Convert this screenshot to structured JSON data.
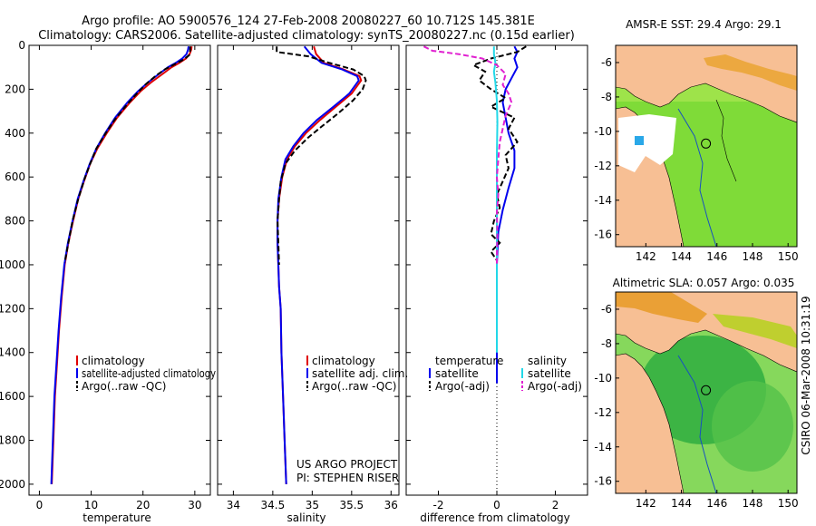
{
  "header": {
    "line1": "Argo profile: AO 5900576_124 27-Feb-2008 20080227_60 10.712S 145.381E",
    "line2": "Climatology: CARS2006. Satellite-adjusted climatology: synTS_20080227.nc (0.15d earlier)"
  },
  "side_label": "CSIRO 06-Mar-2008 10:31:19",
  "colors": {
    "clim": "#e00000",
    "sat": "#0000ee",
    "argo": "#000000",
    "sal_sat": "#22d8e8",
    "sal_argo": "#e020d0",
    "land": "#f7bf94"
  },
  "chart_data": [
    {
      "type": "line",
      "title": "",
      "xlabel": "temperature",
      "ylabel": "",
      "xlim": [
        -2,
        33
      ],
      "ylim": [
        2050,
        0
      ],
      "xticks": [
        0,
        10,
        20,
        30
      ],
      "yticks": [
        0,
        200,
        400,
        600,
        800,
        1000,
        1200,
        1400,
        1600,
        1800,
        2000
      ],
      "legend": [
        "climatology",
        "satellite-adjusted climatology",
        "Argo(..raw -QC)"
      ],
      "series": [
        {
          "name": "climatology",
          "color": "#e00000",
          "dash": "",
          "points": [
            [
              29.4,
              5
            ],
            [
              29.3,
              20
            ],
            [
              29.0,
              40
            ],
            [
              28.3,
              60
            ],
            [
              27.0,
              80
            ],
            [
              25.5,
              100
            ],
            [
              23.8,
              130
            ],
            [
              21.5,
              170
            ],
            [
              19.5,
              210
            ],
            [
              17.5,
              260
            ],
            [
              15.0,
              330
            ],
            [
              13.0,
              400
            ],
            [
              11.2,
              470
            ],
            [
              9.8,
              540
            ],
            [
              8.6,
              620
            ],
            [
              7.5,
              700
            ],
            [
              6.5,
              800
            ],
            [
              5.6,
              900
            ],
            [
              4.9,
              1000
            ],
            [
              4.3,
              1150
            ],
            [
              3.8,
              1300
            ],
            [
              3.4,
              1450
            ],
            [
              3.0,
              1600
            ],
            [
              2.7,
              1800
            ],
            [
              2.4,
              2000
            ]
          ]
        },
        {
          "name": "satellite-adjusted climatology",
          "color": "#0000ee",
          "dash": "",
          "points": [
            [
              28.8,
              5
            ],
            [
              28.7,
              20
            ],
            [
              28.4,
              40
            ],
            [
              27.6,
              60
            ],
            [
              26.3,
              80
            ],
            [
              24.8,
              100
            ],
            [
              23.1,
              130
            ],
            [
              20.9,
              170
            ],
            [
              19.0,
              210
            ],
            [
              17.0,
              260
            ],
            [
              14.6,
              330
            ],
            [
              12.7,
              400
            ],
            [
              11.0,
              470
            ],
            [
              9.7,
              540
            ],
            [
              8.5,
              620
            ],
            [
              7.4,
              700
            ],
            [
              6.4,
              800
            ],
            [
              5.5,
              900
            ],
            [
              4.8,
              1000
            ],
            [
              4.2,
              1150
            ],
            [
              3.7,
              1300
            ],
            [
              3.3,
              1450
            ],
            [
              2.9,
              1600
            ],
            [
              2.6,
              1800
            ],
            [
              2.3,
              2000
            ]
          ]
        },
        {
          "name": "Argo(..raw -QC)",
          "color": "#000000",
          "dash": "6,3",
          "points": [
            [
              29.1,
              5
            ],
            [
              29.1,
              25
            ],
            [
              28.9,
              45
            ],
            [
              27.8,
              65
            ],
            [
              26.2,
              85
            ],
            [
              24.2,
              110
            ],
            [
              22.4,
              140
            ],
            [
              20.4,
              180
            ],
            [
              18.8,
              220
            ],
            [
              16.9,
              270
            ],
            [
              14.5,
              340
            ],
            [
              12.8,
              400
            ],
            [
              11.0,
              470
            ],
            [
              9.8,
              540
            ],
            [
              8.7,
              610
            ],
            [
              7.5,
              700
            ],
            [
              6.4,
              800
            ],
            [
              5.6,
              900
            ],
            [
              4.9,
              990
            ]
          ]
        }
      ]
    },
    {
      "type": "line",
      "title": "",
      "xlabel": "salinity",
      "ylabel": "",
      "xlim": [
        33.8,
        36.1
      ],
      "ylim": [
        2050,
        0
      ],
      "xticks": [
        34,
        34.5,
        35,
        35.5,
        36
      ],
      "legend": [
        "climatology",
        "satellite adj. clim.",
        "Argo(..raw -QC)"
      ],
      "annotations": [
        "US ARGO PROJECT",
        "PI: STEPHEN RISER"
      ],
      "series": [
        {
          "name": "climatology",
          "color": "#e00000",
          "dash": "",
          "points": [
            [
              35.02,
              5
            ],
            [
              35.05,
              40
            ],
            [
              35.15,
              80
            ],
            [
              35.4,
              110
            ],
            [
              35.6,
              140
            ],
            [
              35.62,
              160
            ],
            [
              35.5,
              220
            ],
            [
              35.3,
              280
            ],
            [
              35.1,
              340
            ],
            [
              34.92,
              400
            ],
            [
              34.78,
              460
            ],
            [
              34.68,
              520
            ],
            [
              34.62,
              600
            ],
            [
              34.58,
              700
            ],
            [
              34.56,
              800
            ],
            [
              34.56,
              900
            ],
            [
              34.57,
              1000
            ],
            [
              34.58,
              1100
            ],
            [
              34.6,
              1200
            ],
            [
              34.61,
              1400
            ],
            [
              34.63,
              1600
            ],
            [
              34.65,
              1800
            ],
            [
              34.67,
              2000
            ]
          ]
        },
        {
          "name": "satellite adj. clim.",
          "color": "#0000ee",
          "dash": "",
          "points": [
            [
              34.9,
              5
            ],
            [
              34.98,
              40
            ],
            [
              35.12,
              80
            ],
            [
              35.38,
              110
            ],
            [
              35.57,
              140
            ],
            [
              35.59,
              160
            ],
            [
              35.47,
              220
            ],
            [
              35.27,
              280
            ],
            [
              35.06,
              340
            ],
            [
              34.89,
              400
            ],
            [
              34.76,
              460
            ],
            [
              34.66,
              520
            ],
            [
              34.61,
              600
            ],
            [
              34.57,
              700
            ],
            [
              34.56,
              800
            ],
            [
              34.56,
              900
            ],
            [
              34.57,
              1000
            ],
            [
              34.58,
              1100
            ],
            [
              34.6,
              1200
            ],
            [
              34.61,
              1400
            ],
            [
              34.63,
              1600
            ],
            [
              34.65,
              1800
            ],
            [
              34.67,
              2000
            ]
          ]
        },
        {
          "name": "Argo(..raw -QC)",
          "color": "#000000",
          "dash": "6,3",
          "points": [
            [
              34.55,
              5
            ],
            [
              34.55,
              30
            ],
            [
              34.95,
              50
            ],
            [
              35.22,
              80
            ],
            [
              35.52,
              110
            ],
            [
              35.66,
              140
            ],
            [
              35.68,
              160
            ],
            [
              35.64,
              200
            ],
            [
              35.52,
              250
            ],
            [
              35.33,
              310
            ],
            [
              35.12,
              370
            ],
            [
              34.95,
              420
            ],
            [
              34.78,
              480
            ],
            [
              34.66,
              540
            ],
            [
              34.6,
              620
            ],
            [
              34.58,
              700
            ],
            [
              34.56,
              800
            ],
            [
              34.57,
              900
            ],
            [
              34.58,
              1000
            ]
          ]
        }
      ]
    },
    {
      "type": "line",
      "title": "",
      "xlabel": "difference from climatology",
      "ylabel": "",
      "xlim": [
        -3.1,
        3.1
      ],
      "ylim": [
        2050,
        0
      ],
      "xticks": [
        -2,
        0,
        2
      ],
      "legend_temperature": [
        "temperature",
        "satellite",
        "Argo(-adj)"
      ],
      "legend_salinity": [
        "salinity",
        "satellite",
        "Argo(-adj)"
      ],
      "series": [
        {
          "name": "temperature satellite",
          "color": "#0000ee",
          "dash": "",
          "points": [
            [
              0.6,
              5
            ],
            [
              0.7,
              30
            ],
            [
              0.6,
              60
            ],
            [
              0.7,
              100
            ],
            [
              0.5,
              150
            ],
            [
              0.3,
              200
            ],
            [
              0.2,
              260
            ],
            [
              0.3,
              330
            ],
            [
              0.4,
              400
            ],
            [
              0.6,
              480
            ],
            [
              0.6,
              560
            ],
            [
              0.4,
              650
            ],
            [
              0.2,
              750
            ],
            [
              0.05,
              850
            ],
            [
              0.0,
              1000
            ],
            [
              0.0,
              1200
            ],
            [
              0.0,
              1400
            ],
            [
              0.0,
              1540
            ]
          ]
        },
        {
          "name": "temperature Argo(-adj)",
          "color": "#000000",
          "dash": "6,3",
          "points": [
            [
              1.0,
              5
            ],
            [
              0.7,
              30
            ],
            [
              -0.2,
              60
            ],
            [
              -0.8,
              90
            ],
            [
              -0.4,
              120
            ],
            [
              -0.6,
              160
            ],
            [
              -0.2,
              200
            ],
            [
              0.3,
              240
            ],
            [
              -0.2,
              280
            ],
            [
              0.6,
              330
            ],
            [
              0.4,
              380
            ],
            [
              0.7,
              440
            ],
            [
              0.3,
              500
            ],
            [
              0.4,
              560
            ],
            [
              0.2,
              620
            ],
            [
              0.0,
              680
            ],
            [
              0.1,
              740
            ],
            [
              -0.1,
              800
            ],
            [
              -0.2,
              860
            ],
            [
              0.1,
              900
            ],
            [
              -0.2,
              940
            ],
            [
              0.0,
              980
            ]
          ]
        },
        {
          "name": "salinity satellite",
          "color": "#22d8e8",
          "dash": "",
          "points": [
            [
              -0.1,
              5
            ],
            [
              -0.1,
              40
            ],
            [
              -0.05,
              80
            ],
            [
              -0.1,
              120
            ],
            [
              -0.05,
              170
            ],
            [
              0.0,
              250
            ],
            [
              0.02,
              350
            ],
            [
              0.0,
              500
            ],
            [
              0.0,
              700
            ],
            [
              0.0,
              900
            ],
            [
              0.0,
              1100
            ],
            [
              0.0,
              1300
            ],
            [
              0.0,
              1400
            ]
          ]
        },
        {
          "name": "salinity Argo(-adj)",
          "color": "#e020d0",
          "dash": "6,3",
          "points": [
            [
              -2.5,
              5
            ],
            [
              -2.2,
              25
            ],
            [
              -1.3,
              40
            ],
            [
              -0.5,
              60
            ],
            [
              0.0,
              90
            ],
            [
              0.3,
              130
            ],
            [
              0.2,
              180
            ],
            [
              0.4,
              220
            ],
            [
              0.5,
              260
            ],
            [
              0.3,
              320
            ],
            [
              0.2,
              380
            ],
            [
              0.1,
              440
            ],
            [
              0.05,
              520
            ],
            [
              0.0,
              600
            ],
            [
              0.05,
              680
            ],
            [
              0.0,
              760
            ],
            [
              0.02,
              850
            ],
            [
              0.0,
              950
            ],
            [
              0.0,
              1000
            ]
          ]
        }
      ]
    },
    {
      "type": "heatmap",
      "title": "AMSR-E SST: 29.4 Argo: 29.1",
      "xlim": [
        140.3,
        150.5
      ],
      "ylim": [
        -16.7,
        -5.0
      ],
      "xticks": [
        142,
        144,
        146,
        148,
        150
      ],
      "yticks": [
        -6,
        -8,
        -10,
        -12,
        -14,
        -16
      ],
      "marker": [
        145.38,
        -10.71
      ]
    },
    {
      "type": "heatmap",
      "title": "Altimetric SLA: 0.057 Argo: 0.035",
      "xlim": [
        140.3,
        150.5
      ],
      "ylim": [
        -16.7,
        -5.0
      ],
      "xticks": [
        142,
        144,
        146,
        148,
        150
      ],
      "yticks": [
        -6,
        -8,
        -10,
        -12,
        -14,
        -16
      ],
      "marker": [
        145.38,
        -10.71
      ]
    }
  ]
}
